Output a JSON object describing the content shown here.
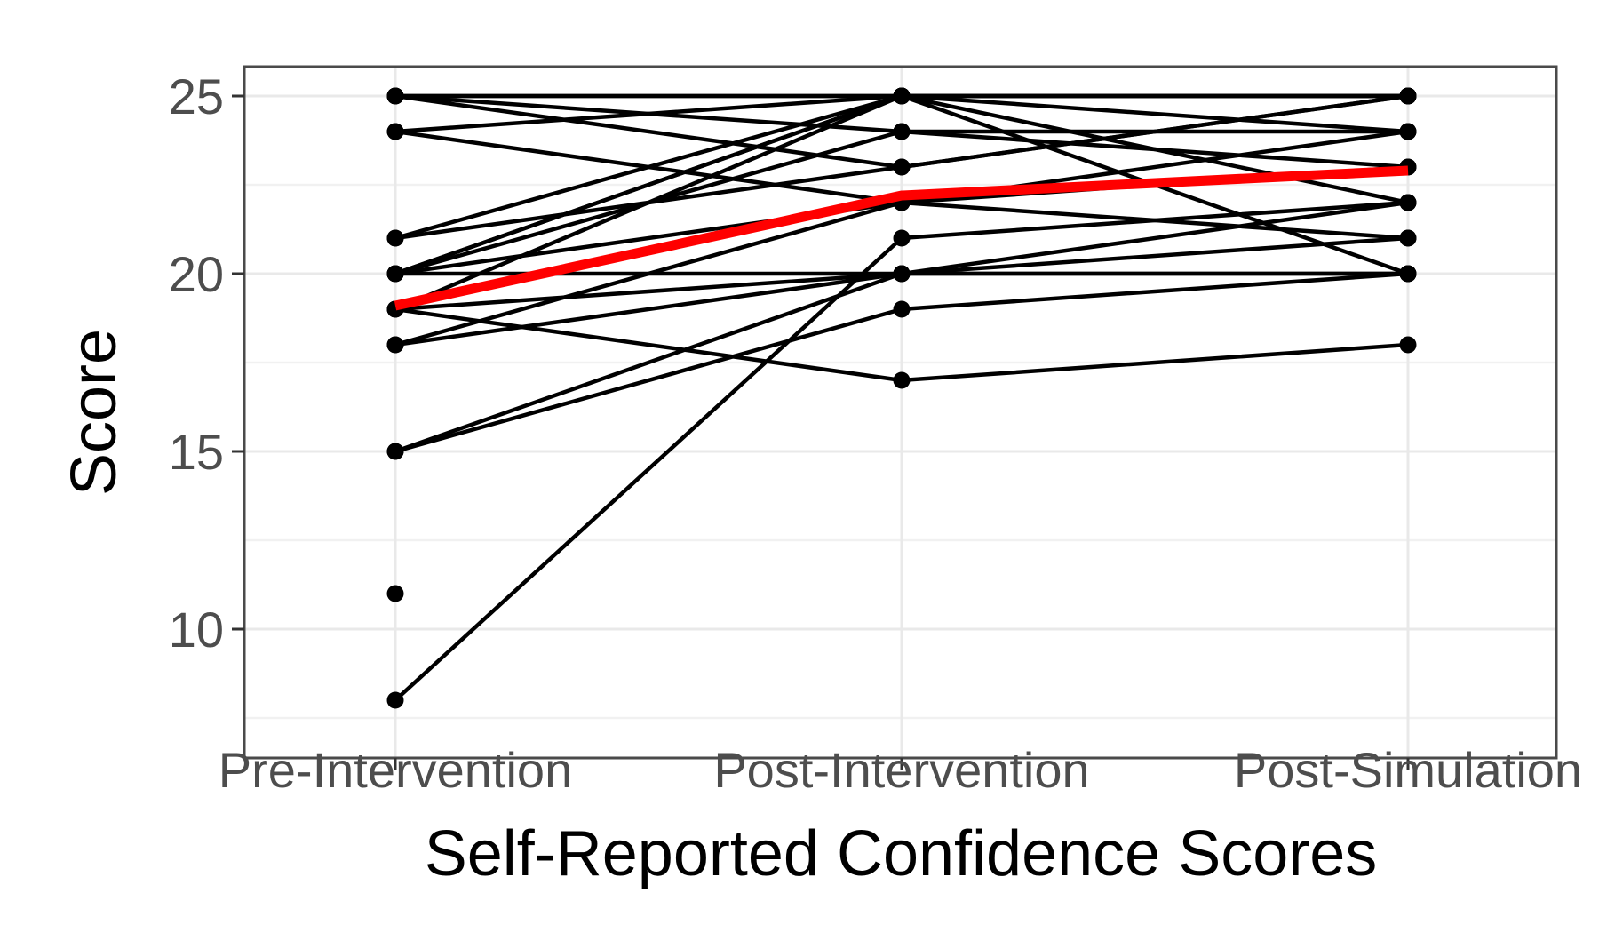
{
  "chart_data": {
    "type": "line",
    "subtype": "spaghetti-plot-individual-trajectories-with-mean",
    "title": "",
    "xlabel": "Self-Reported Confidence Scores",
    "ylabel": "Score",
    "categories": [
      "Pre-Intervention",
      "Post-Intervention",
      "Post-Simulation"
    ],
    "y_ticks": [
      10,
      15,
      20,
      25
    ],
    "y_minor_gridlines": [
      7.5,
      12.5,
      17.5,
      22.5
    ],
    "ylim": [
      6.4,
      25.8
    ],
    "grid": "horizontal major+minor light gray, vertical major at each category, white panel with dark border",
    "legend_position": "none",
    "mean_series": {
      "name": "mean-line",
      "values": [
        19.1,
        22.2,
        22.9
      ],
      "color": "#ff0000",
      "stroke_width": 11
    },
    "individual_series": [
      {
        "values": [
          25,
          25,
          25
        ]
      },
      {
        "values": [
          25,
          25,
          20
        ]
      },
      {
        "values": [
          25,
          24,
          23
        ]
      },
      {
        "values": [
          25,
          23,
          25
        ]
      },
      {
        "values": [
          24,
          25,
          25
        ]
      },
      {
        "values": [
          24,
          22,
          24
        ]
      },
      {
        "values": [
          21,
          25,
          24
        ]
      },
      {
        "values": [
          21,
          23,
          25
        ]
      },
      {
        "values": [
          20,
          25,
          25
        ]
      },
      {
        "values": [
          20,
          25,
          22
        ]
      },
      {
        "values": [
          20,
          24,
          24
        ]
      },
      {
        "values": [
          20,
          22,
          23
        ]
      },
      {
        "values": [
          20,
          20,
          20
        ]
      },
      {
        "values": [
          19,
          25,
          25
        ]
      },
      {
        "values": [
          19,
          20,
          21
        ]
      },
      {
        "values": [
          19,
          17,
          18
        ]
      },
      {
        "values": [
          18,
          22,
          21
        ]
      },
      {
        "values": [
          18,
          20,
          20
        ]
      },
      {
        "values": [
          15,
          20,
          22
        ]
      },
      {
        "values": [
          15,
          19,
          20
        ]
      },
      {
        "values": [
          8,
          21,
          22
        ]
      },
      {
        "values": [
          11,
          null,
          null
        ]
      }
    ],
    "visible_point_values": {
      "Pre-Intervention": [
        25,
        24,
        21,
        20,
        19,
        18,
        15,
        11,
        8
      ],
      "Post-Intervention": [
        25,
        24,
        23,
        22,
        21,
        20,
        19,
        17
      ],
      "Post-Simulation": [
        25,
        24,
        23,
        22,
        21,
        20,
        18
      ]
    },
    "individual_color": "#000000",
    "individual_stroke_width": 4.5,
    "point_radius": 9.5
  },
  "styles": {
    "panel_border_color": "#4a4a4a",
    "major_gridline_color": "#e9e9e9",
    "minor_gridline_color": "#f1f1f1",
    "tick_mark_color": "#333333",
    "tick_label_color": "#4d4d4d",
    "axis_title_color": "#000000",
    "background_color": "#ffffff",
    "mean_line_color": "#ff0000"
  }
}
